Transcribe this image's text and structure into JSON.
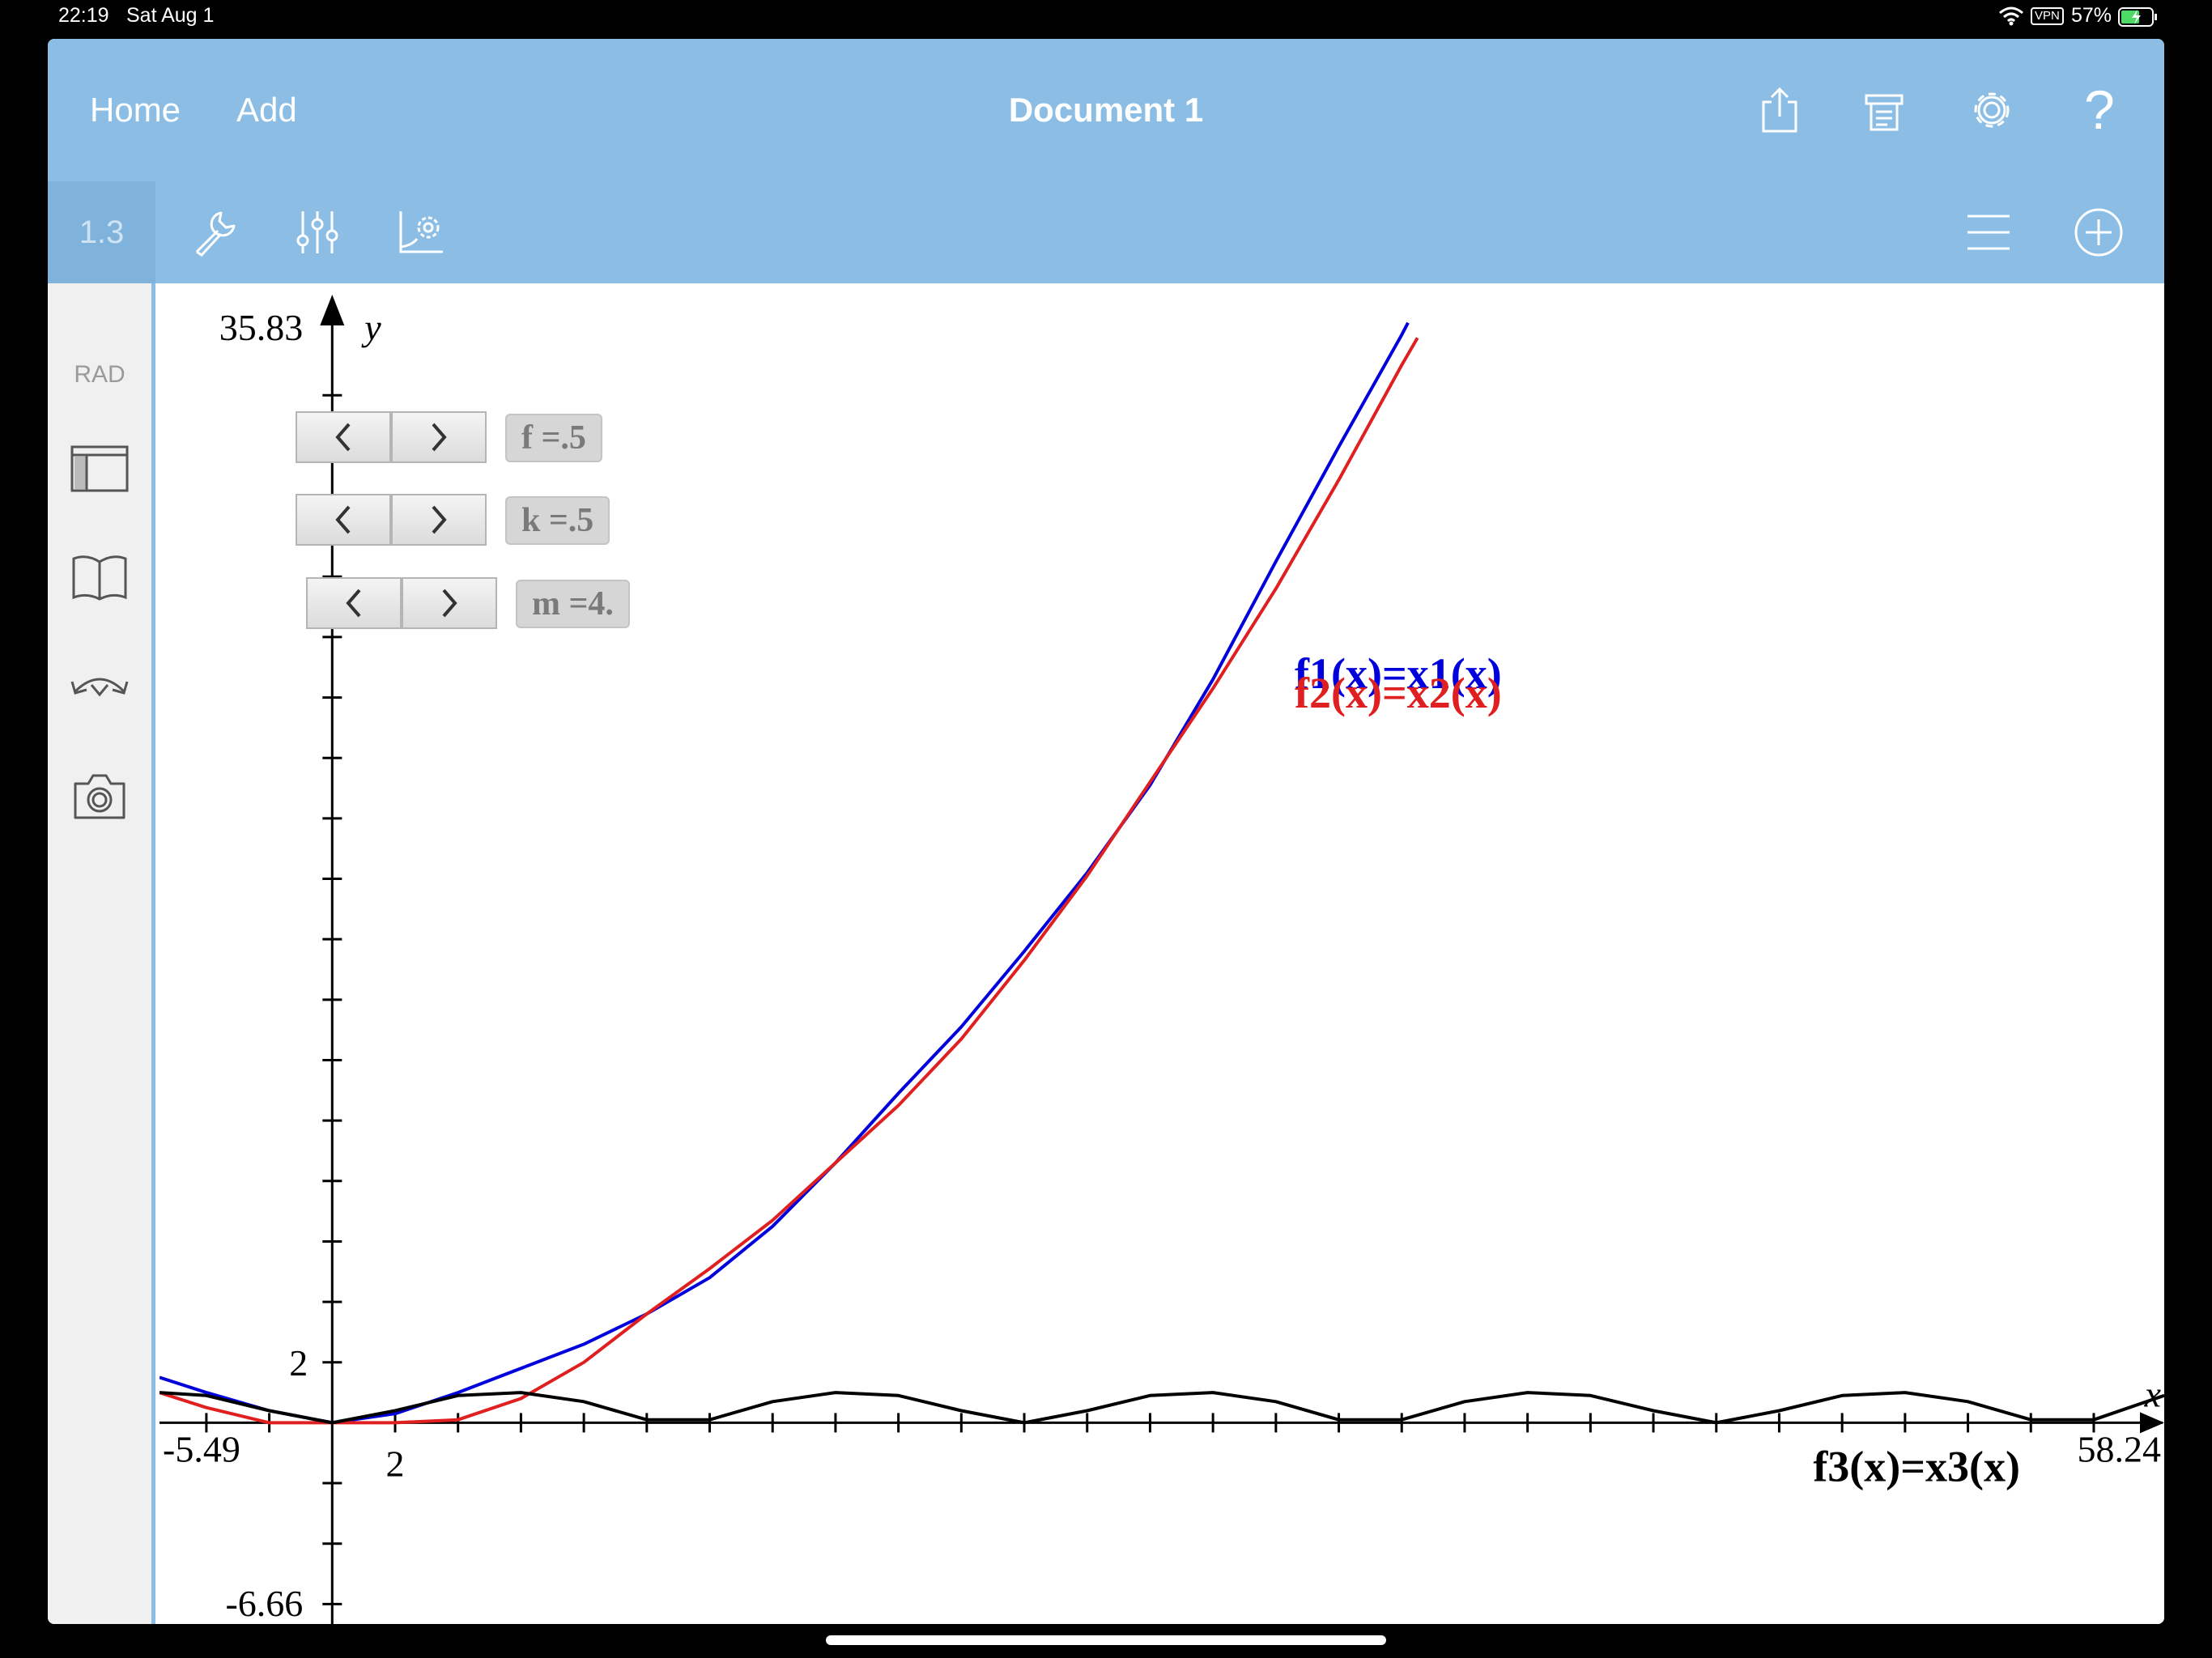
{
  "status_bar": {
    "time": "22:19",
    "date": "Sat Aug 1",
    "vpn": "VPN",
    "battery": "57%"
  },
  "header": {
    "home": "Home",
    "add": "Add",
    "title": "Document 1",
    "help": "?"
  },
  "toolbar": {
    "page": "1.3"
  },
  "sidebar": {
    "angle_mode": "RAD"
  },
  "sliders": [
    {
      "label": "f =.5",
      "value": 0.5
    },
    {
      "label": "k =.5",
      "value": 0.5
    },
    {
      "label": "m =4.",
      "value": 4
    }
  ],
  "graph": {
    "x_axis_label": "x",
    "y_axis_label": "y",
    "xmin_label": "-5.49",
    "xmax_label": "58.24",
    "ymax_label": "35.83",
    "ymin_label": "-6.66",
    "x_tick_label": "2",
    "y_tick_label": "2",
    "f1_label": "f1(x)=x1(x)",
    "f2_label": "f2(x)=x2(x)",
    "f3_label": "f3(x)=x3(x)",
    "colors": {
      "f1": "#0000dd",
      "f2": "#e02020",
      "f3": "#000000"
    }
  },
  "chart_data": {
    "type": "line",
    "xlim": [
      -5.49,
      58.24
    ],
    "ylim": [
      -6.66,
      35.83
    ],
    "grid": false,
    "series": [
      {
        "name": "f1(x)=x1(x)",
        "x": [
          -5.49,
          -4,
          -2,
          0,
          2,
          4,
          6,
          8,
          10,
          12,
          14,
          16,
          18,
          20,
          22,
          24,
          26,
          28,
          30,
          32,
          34,
          34.2
        ],
        "y": [
          1.5,
          1.0,
          0.4,
          0.0,
          0.3,
          1.0,
          1.8,
          2.6,
          3.6,
          4.8,
          6.5,
          8.6,
          10.9,
          13.1,
          15.6,
          18.2,
          21.1,
          24.6,
          28.5,
          32.3,
          36.0,
          36.4
        ]
      },
      {
        "name": "f2(x)=x2(x)",
        "x": [
          -5.49,
          -4,
          -2,
          0,
          2,
          4,
          6,
          8,
          10,
          12,
          14,
          16,
          18,
          20,
          22,
          24,
          26,
          28,
          30,
          32,
          34,
          34.5
        ],
        "y": [
          1.0,
          0.5,
          0.0,
          0.0,
          0.0,
          0.1,
          0.8,
          2.0,
          3.6,
          5.1,
          6.7,
          8.6,
          10.5,
          12.7,
          15.3,
          18.1,
          21.2,
          24.3,
          27.6,
          31.2,
          35.0,
          35.9
        ]
      },
      {
        "name": "f3(x)=x3(x)",
        "x": [
          -5.49,
          -4,
          -2,
          0,
          2,
          4,
          6,
          8,
          10,
          12,
          14,
          16,
          18,
          20,
          22,
          24,
          26,
          28,
          30,
          32,
          34,
          36,
          38,
          40,
          42,
          44,
          46,
          48,
          50,
          52,
          54,
          56,
          58.24
        ],
        "y": [
          1.0,
          0.9,
          0.4,
          0.0,
          0.4,
          0.9,
          1.0,
          0.7,
          0.1,
          0.1,
          0.7,
          1.0,
          0.9,
          0.4,
          0.0,
          0.4,
          0.9,
          1.0,
          0.7,
          0.1,
          0.1,
          0.7,
          1.0,
          0.9,
          0.4,
          0.0,
          0.4,
          0.9,
          1.0,
          0.7,
          0.1,
          0.1,
          0.9
        ]
      }
    ]
  }
}
